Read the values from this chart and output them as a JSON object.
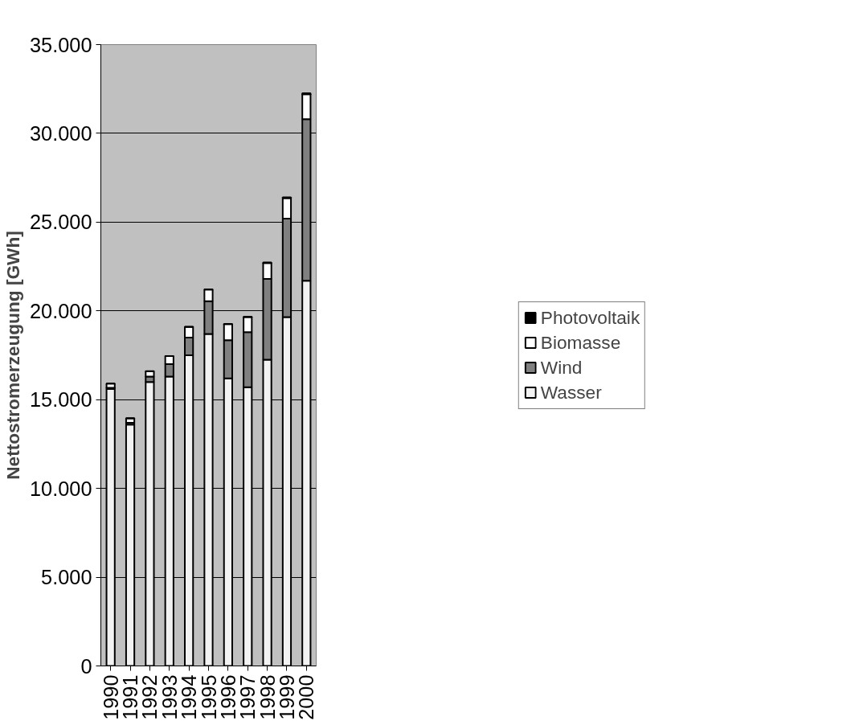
{
  "chart_data": {
    "type": "bar",
    "stacked": true,
    "ylabel": "Nettostromerzeugung [GWh]",
    "categories": [
      "1990",
      "1991",
      "1992",
      "1993",
      "1994",
      "1995",
      "1996",
      "1997",
      "1998",
      "1999",
      "2000"
    ],
    "series": [
      {
        "name": "Wasser",
        "color": "#f2f2f2",
        "values": [
          15600,
          13600,
          16000,
          16300,
          17500,
          18700,
          16200,
          15700,
          17250,
          19650,
          21700
        ]
      },
      {
        "name": "Wind",
        "color": "#808080",
        "values": [
          70,
          100,
          300,
          700,
          1000,
          1850,
          2150,
          3100,
          4550,
          5550,
          9100
        ]
      },
      {
        "name": "Biomasse",
        "color": "#ffffff",
        "values": [
          230,
          250,
          300,
          450,
          600,
          650,
          900,
          850,
          900,
          1150,
          1400
        ]
      },
      {
        "name": "Photovoltaik",
        "color": "#000000",
        "values": [
          1,
          2,
          3,
          6,
          8,
          11,
          16,
          26,
          32,
          42,
          64
        ]
      }
    ],
    "ylim": [
      0,
      35000
    ],
    "yticks": [
      0,
      {
        "value": 5000,
        "label": "5.000"
      },
      {
        "value": 10000,
        "label": "10.000"
      },
      {
        "value": 15000,
        "label": "15.000"
      },
      {
        "value": 20000,
        "label": "20.000"
      },
      {
        "value": 25000,
        "label": "25.000"
      },
      {
        "value": 30000,
        "label": "30.000"
      },
      {
        "value": 35000,
        "label": "35.000"
      }
    ],
    "grid": "y",
    "legend": "right"
  }
}
